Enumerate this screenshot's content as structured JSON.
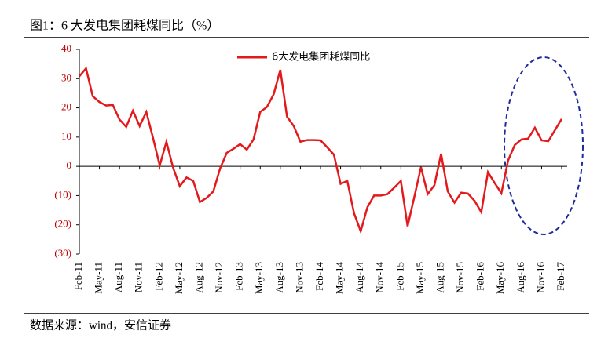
{
  "chart_data": {
    "type": "line",
    "title": "图1：6 大发电集团耗煤同比（%）",
    "source": "数据来源：wind，安信证券",
    "categories": [
      "Feb-11",
      null,
      null,
      "May-11",
      null,
      null,
      "Aug-11",
      null,
      null,
      "Nov-11",
      null,
      null,
      "Feb-12",
      null,
      null,
      "May-12",
      null,
      null,
      "Aug-12",
      null,
      null,
      "Nov-12",
      null,
      null,
      "Feb-13",
      null,
      null,
      "May-13",
      null,
      null,
      "Aug-13",
      null,
      null,
      "Nov-13",
      null,
      null,
      "Feb-14",
      null,
      null,
      "May-14",
      null,
      null,
      "Aug-14",
      null,
      null,
      "Nov-14",
      null,
      null,
      "Feb-15",
      null,
      null,
      "May-15",
      null,
      null,
      "Aug-15",
      null,
      null,
      "Nov-15",
      null,
      null,
      "Feb-16",
      null,
      null,
      "May-16",
      null,
      null,
      "Aug-16",
      null,
      null,
      "Nov-16",
      null,
      null,
      "Feb-17"
    ],
    "series": [
      {
        "name": "6大发电集团耗煤同比",
        "color": "#e31a1c",
        "values": [
          30.8,
          33.5,
          24,
          22,
          20.8,
          21,
          16,
          13.5,
          19,
          13.8,
          18.6,
          9.7,
          0.3,
          8.4,
          -0.5,
          -6.8,
          -3.8,
          -5,
          -12.2,
          -10.8,
          -8.6,
          -0.8,
          4.6,
          6,
          7.6,
          5.7,
          9.2,
          18.6,
          20.3,
          24.6,
          33,
          17,
          13.8,
          8.4,
          9,
          9,
          8.9,
          6.5,
          4,
          -6,
          -5,
          -16,
          -22.2,
          -14,
          -10,
          -10,
          -9.5,
          -7.3,
          -5,
          -20.5,
          -10.5,
          -0.3,
          -9.5,
          -6.5,
          4.3,
          -8.6,
          -12.4,
          -9,
          -9.3,
          -11.8,
          -15.7,
          -2,
          -5.7,
          -9.2,
          2,
          7.3,
          9.2,
          9.5,
          13.2,
          8.9,
          8.6,
          12.4,
          16.2
        ]
      }
    ],
    "ylim": [
      -30,
      40
    ],
    "yticks": [
      {
        "value": -30,
        "label": "(30)"
      },
      {
        "value": -20,
        "label": "(20)"
      },
      {
        "value": -10,
        "label": "(10)"
      },
      0,
      10,
      20,
      30,
      40
    ],
    "tick_color": "#c00000",
    "legend": "top"
  }
}
